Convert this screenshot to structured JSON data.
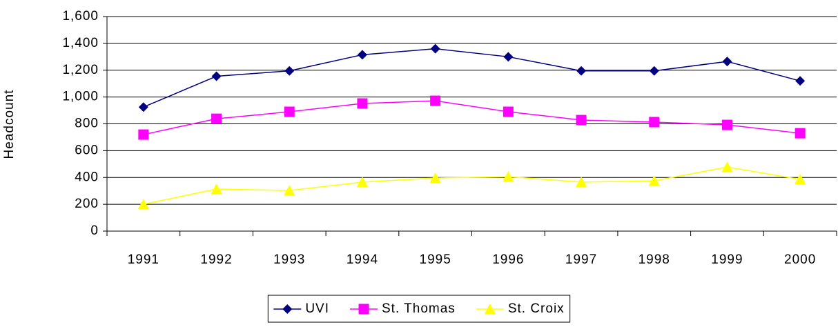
{
  "chart_data": {
    "type": "line",
    "y_label": "Headcount",
    "categories": [
      "1991",
      "1992",
      "1993",
      "1994",
      "1995",
      "1996",
      "1997",
      "1998",
      "1999",
      "2000"
    ],
    "series": [
      {
        "name": "UVI",
        "color": "#000080",
        "marker": "diamond",
        "values": [
          925,
          1155,
          1195,
          1315,
          1360,
          1300,
          1195,
          1195,
          1265,
          1120
        ]
      },
      {
        "name": "St. Thomas",
        "color": "#ff00ff",
        "marker": "square",
        "values": [
          720,
          838,
          890,
          952,
          972,
          890,
          828,
          813,
          792,
          730
        ]
      },
      {
        "name": "St. Croix",
        "color": "#ffff00",
        "marker": "triangle",
        "values": [
          200,
          314,
          303,
          365,
          396,
          406,
          365,
          375,
          478,
          386
        ]
      }
    ],
    "ylim": [
      0,
      1600
    ],
    "yticks": [
      0,
      200,
      400,
      600,
      800,
      {
        "value": 1000,
        "label": "1,000"
      },
      {
        "value": 1200,
        "label": "1,200"
      },
      {
        "value": 1400,
        "label": "1,400"
      },
      {
        "value": 1600,
        "label": "1,600"
      }
    ],
    "grid": true,
    "legend": "bottom"
  }
}
